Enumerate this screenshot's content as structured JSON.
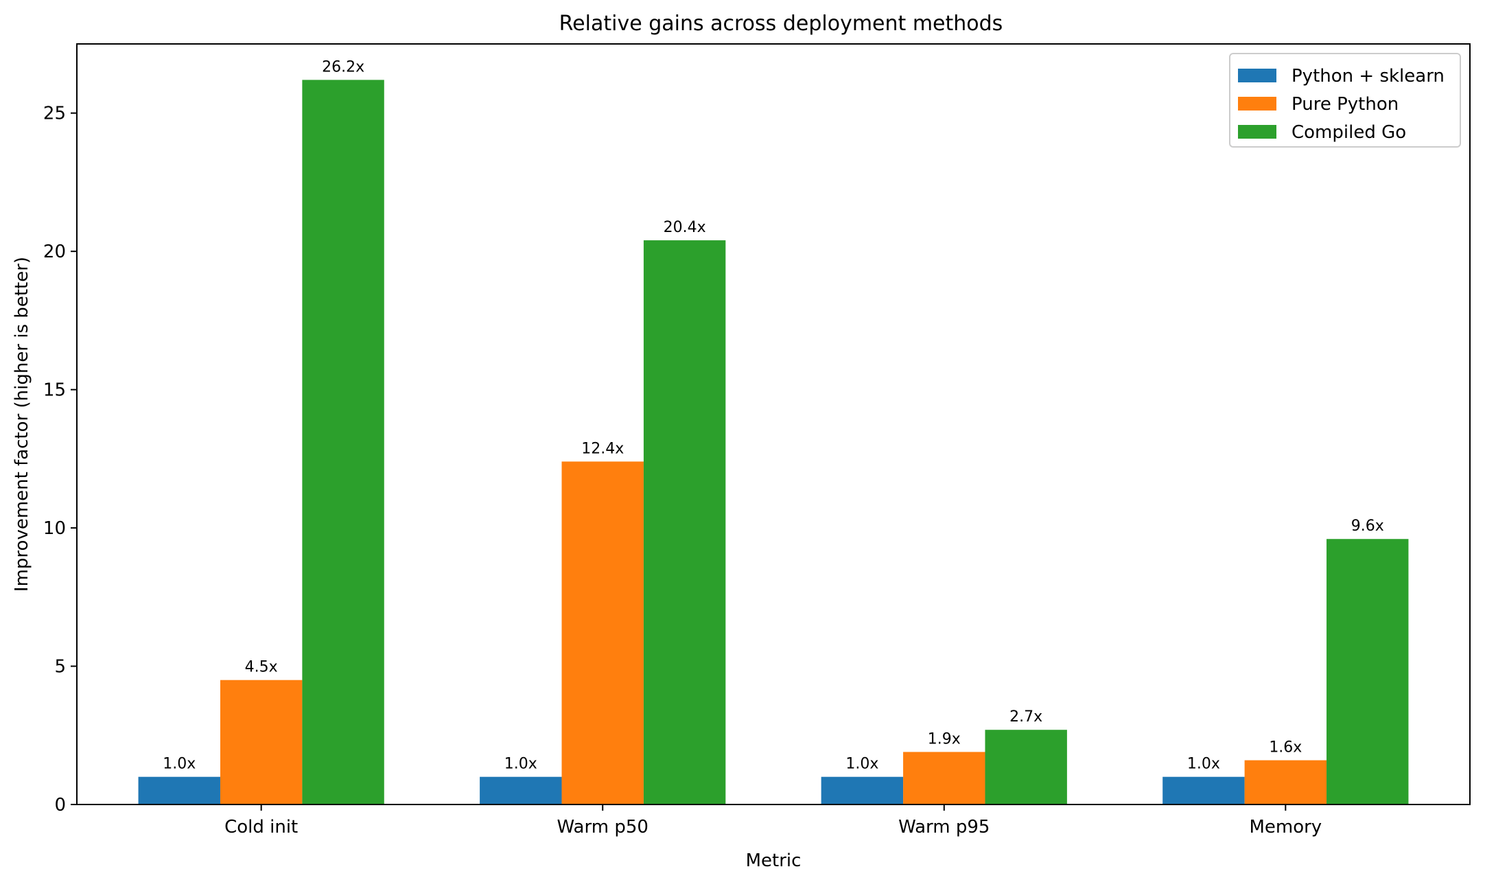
{
  "chart_data": {
    "type": "bar",
    "title": "Relative gains across deployment methods",
    "xlabel": "Metric",
    "ylabel": "Improvement factor (higher is better)",
    "categories": [
      "Cold init",
      "Warm p50",
      "Warm p95",
      "Memory"
    ],
    "series": [
      {
        "name": "Python + sklearn",
        "color": "#1f77b4",
        "values": [
          1.0,
          1.0,
          1.0,
          1.0
        ],
        "labels": [
          "1.0x",
          "1.0x",
          "1.0x",
          "1.0x"
        ]
      },
      {
        "name": "Pure Python",
        "color": "#ff7f0e",
        "values": [
          4.5,
          12.4,
          1.9,
          1.6
        ],
        "labels": [
          "4.5x",
          "12.4x",
          "1.9x",
          "1.6x"
        ]
      },
      {
        "name": "Compiled Go",
        "color": "#2ca02c",
        "values": [
          26.2,
          20.4,
          2.7,
          9.6
        ],
        "labels": [
          "26.2x",
          "20.4x",
          "2.7x",
          "9.6x"
        ]
      }
    ],
    "ylim": [
      0,
      27.5
    ],
    "yticks": [
      0,
      5,
      10,
      15,
      20,
      25
    ],
    "grid": false,
    "legend_position": "top-right"
  }
}
